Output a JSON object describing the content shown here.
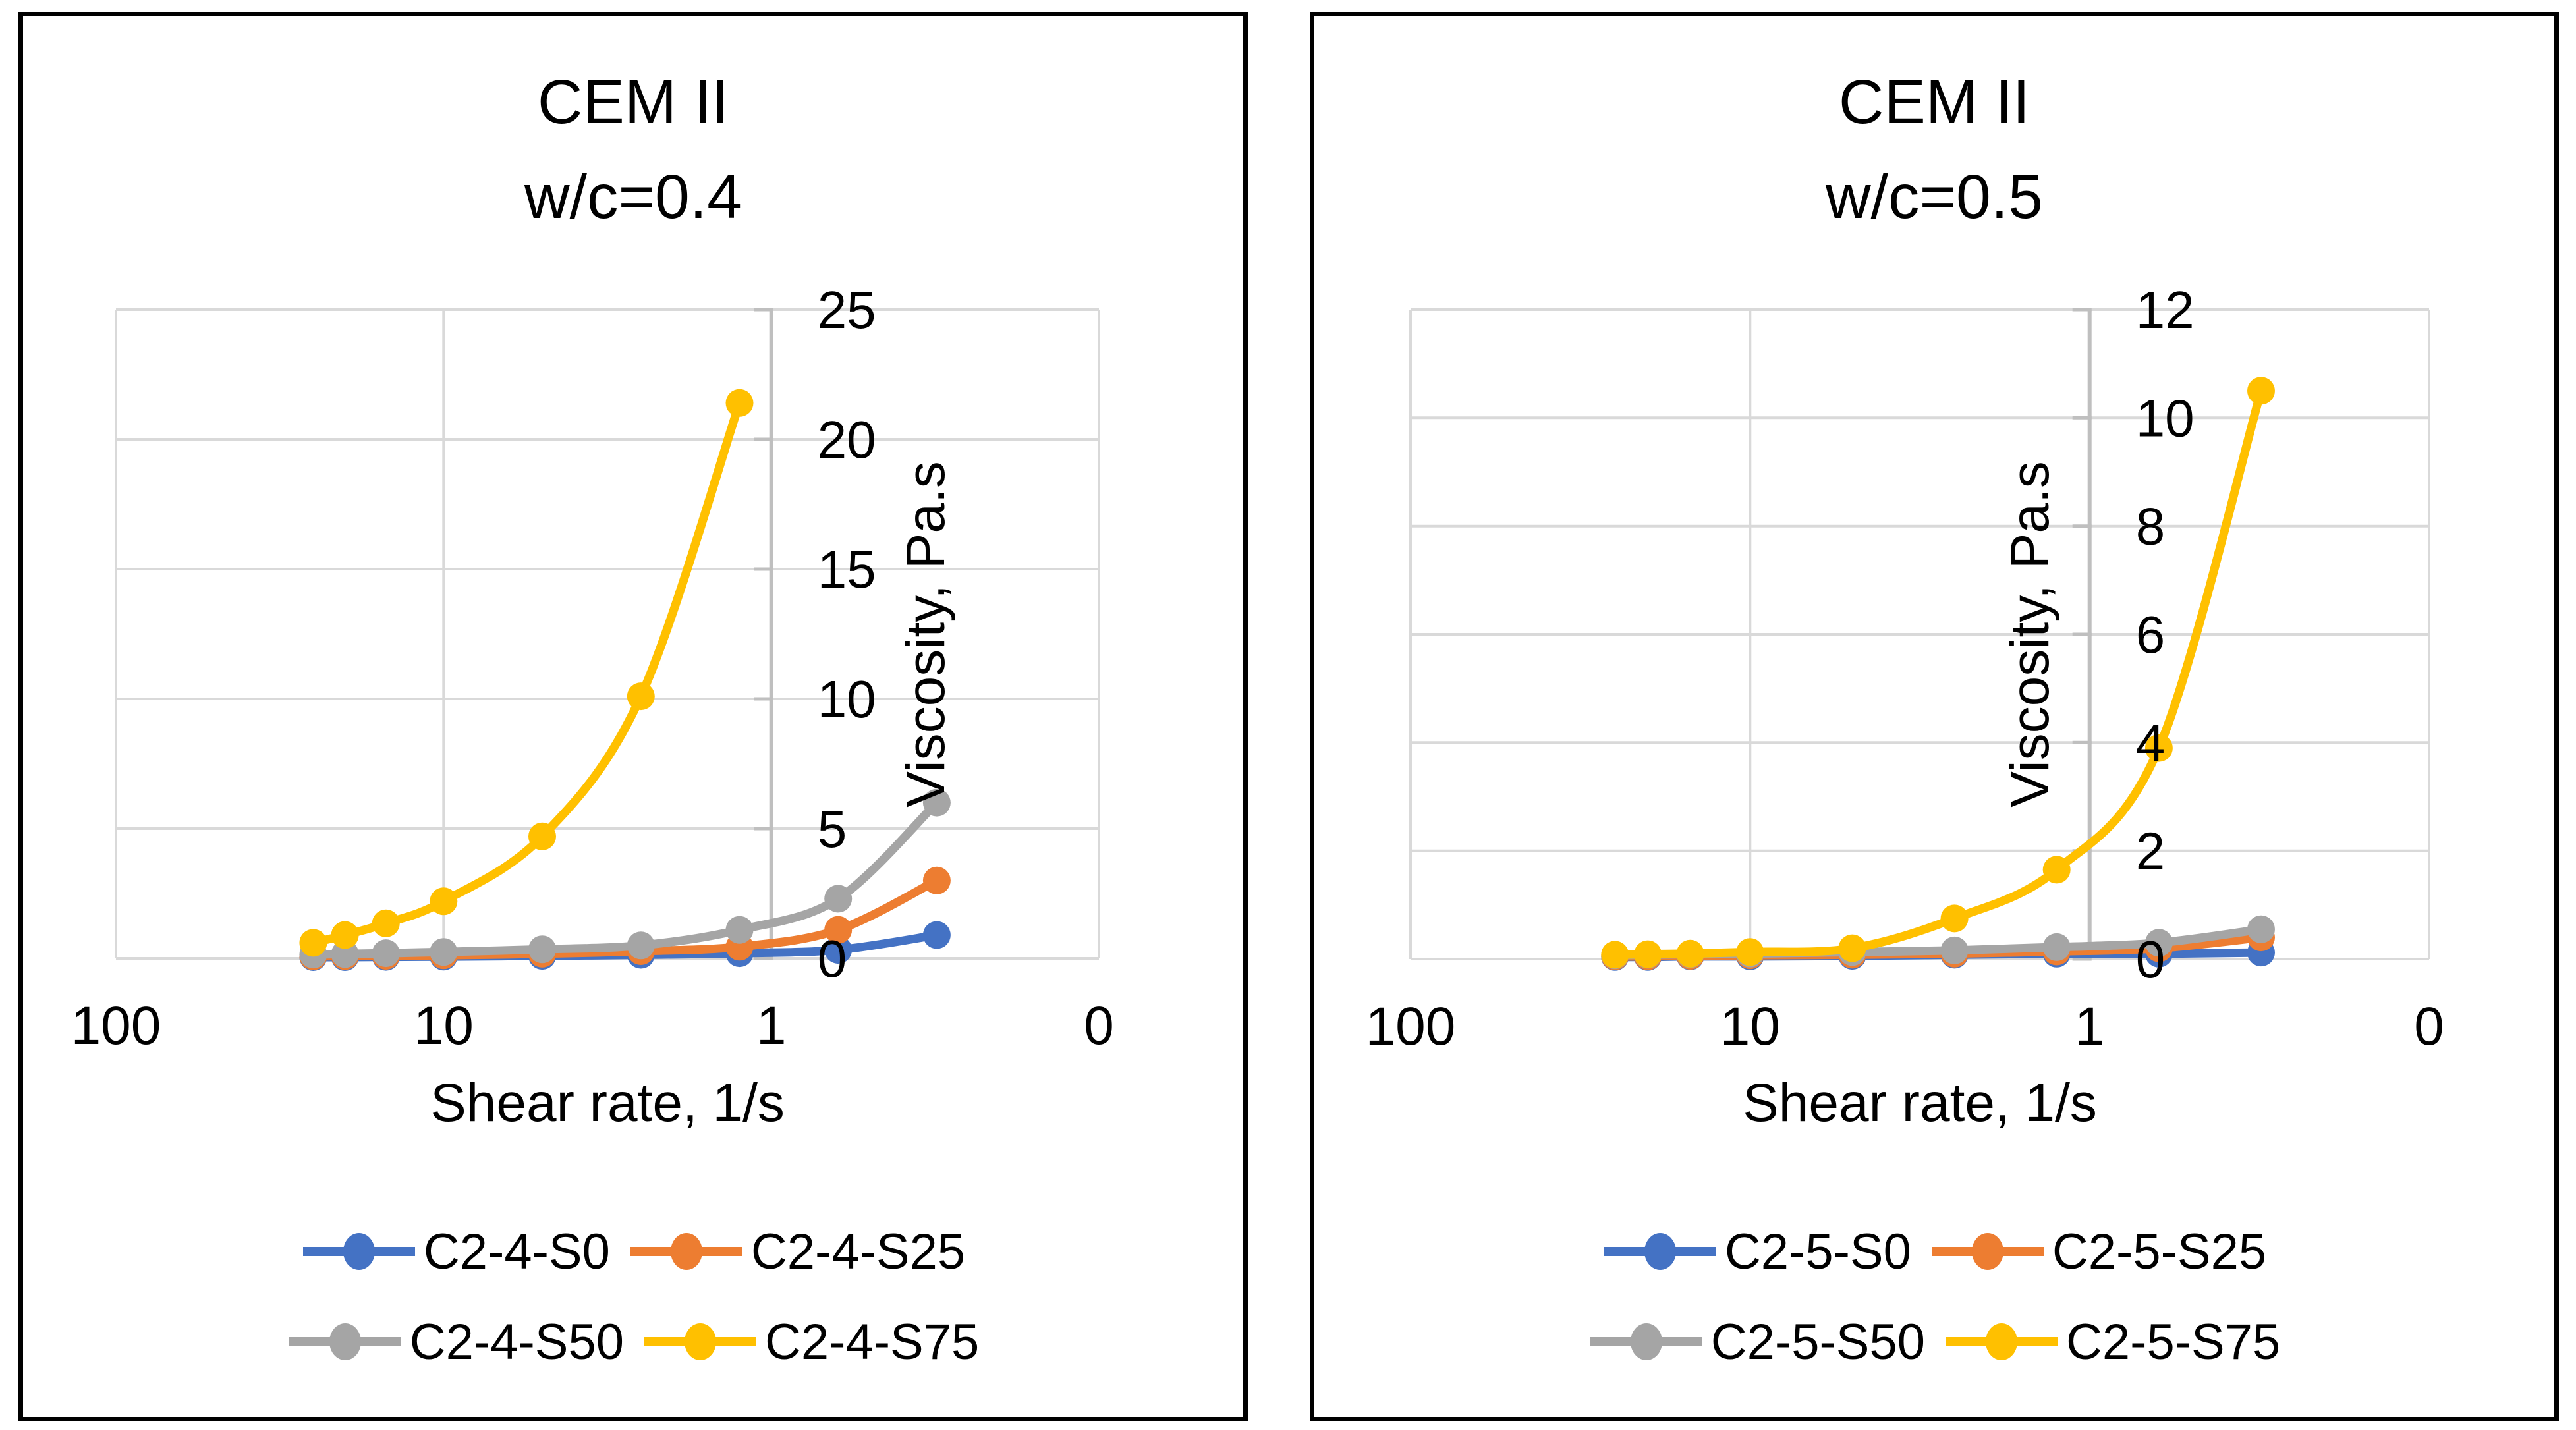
{
  "colors": {
    "series_blue": "#4472C4",
    "series_orange": "#ED7D31",
    "series_gray": "#A5A5A5",
    "series_yellow": "#FFC000",
    "gridline": "#D9D9D9",
    "axis_line": "#BFBFBF",
    "text": "#000000",
    "panel_border": "#000000",
    "background": "#FFFFFF"
  },
  "chart_data": [
    {
      "type": "line",
      "title": "CEM II",
      "subtitle": "w/c=0.4",
      "xlabel": "Shear rate, 1/s",
      "ylabel": "Viscosity, Pa.s",
      "x_scale": "log10-reversed",
      "x_range": [
        100,
        0.1
      ],
      "x_tick_values": [
        100,
        10,
        1,
        0.1
      ],
      "x_tick_labels": [
        "100",
        "10",
        "1",
        "0"
      ],
      "ylim": [
        0,
        25
      ],
      "y_tick_step": 5,
      "y_tick_labels": [
        "25",
        "20",
        "15",
        "10",
        "5",
        "0"
      ],
      "grid": true,
      "legend_position": "bottom",
      "y_axis_drawn_at_x": 1,
      "series": [
        {
          "name": "C2-4-S0",
          "color": "#4472C4",
          "x": [
            25,
            20,
            15,
            10,
            5,
            2.5,
            1.25,
            0.625,
            0.3125
          ],
          "y": [
            0.05,
            0.05,
            0.06,
            0.07,
            0.1,
            0.14,
            0.2,
            0.33,
            0.9
          ]
        },
        {
          "name": "C2-4-S25",
          "color": "#ED7D31",
          "x": [
            25,
            20,
            15,
            10,
            5,
            2.5,
            1.25,
            0.625,
            0.3125
          ],
          "y": [
            0.08,
            0.09,
            0.1,
            0.12,
            0.18,
            0.28,
            0.45,
            1.1,
            3.0
          ]
        },
        {
          "name": "C2-4-S50",
          "color": "#A5A5A5",
          "x": [
            25,
            20,
            15,
            10,
            5,
            2.5,
            1.25,
            0.625,
            0.3125
          ],
          "y": [
            0.15,
            0.17,
            0.2,
            0.25,
            0.35,
            0.5,
            1.1,
            2.3,
            6.0
          ]
        },
        {
          "name": "C2-4-S75",
          "color": "#FFC000",
          "x": [
            25,
            20,
            15,
            10,
            5,
            2.5,
            1.25
          ],
          "y": [
            0.6,
            0.9,
            1.35,
            2.2,
            4.7,
            10.1,
            21.4
          ]
        }
      ]
    },
    {
      "type": "line",
      "title": "CEM II",
      "subtitle": "w/c=0.5",
      "xlabel": "Shear rate, 1/s",
      "ylabel": "Viscosity, Pa.s",
      "x_scale": "log10-reversed",
      "x_range": [
        100,
        0.1
      ],
      "x_tick_values": [
        100,
        10,
        1,
        0.1
      ],
      "x_tick_labels": [
        "100",
        "10",
        "1",
        "0"
      ],
      "ylim": [
        0,
        12
      ],
      "y_tick_step": 2,
      "y_tick_labels": [
        "12",
        "10",
        "8",
        "6",
        "4",
        "2",
        "0"
      ],
      "grid": true,
      "legend_position": "bottom",
      "y_axis_drawn_at_x": 1,
      "series": [
        {
          "name": "C2-5-S0",
          "color": "#4472C4",
          "x": [
            25,
            20,
            15,
            10,
            5,
            2.5,
            1.25,
            0.625,
            0.3125
          ],
          "y": [
            0.04,
            0.04,
            0.05,
            0.05,
            0.06,
            0.08,
            0.1,
            0.1,
            0.12
          ]
        },
        {
          "name": "C2-5-S25",
          "color": "#ED7D31",
          "x": [
            25,
            20,
            15,
            10,
            5,
            2.5,
            1.25,
            0.625,
            0.3125
          ],
          "y": [
            0.05,
            0.05,
            0.06,
            0.07,
            0.08,
            0.1,
            0.14,
            0.2,
            0.4
          ]
        },
        {
          "name": "C2-5-S50",
          "color": "#A5A5A5",
          "x": [
            25,
            20,
            15,
            10,
            5,
            2.5,
            1.25,
            0.625,
            0.3125
          ],
          "y": [
            0.07,
            0.08,
            0.09,
            0.1,
            0.13,
            0.16,
            0.22,
            0.3,
            0.55
          ]
        },
        {
          "name": "C2-5-S75",
          "color": "#FFC000",
          "x": [
            25,
            20,
            15,
            10,
            5,
            2.5,
            1.25,
            0.625,
            0.3125
          ],
          "y": [
            0.08,
            0.09,
            0.1,
            0.13,
            0.2,
            0.75,
            1.65,
            3.9,
            10.5
          ]
        }
      ]
    }
  ]
}
